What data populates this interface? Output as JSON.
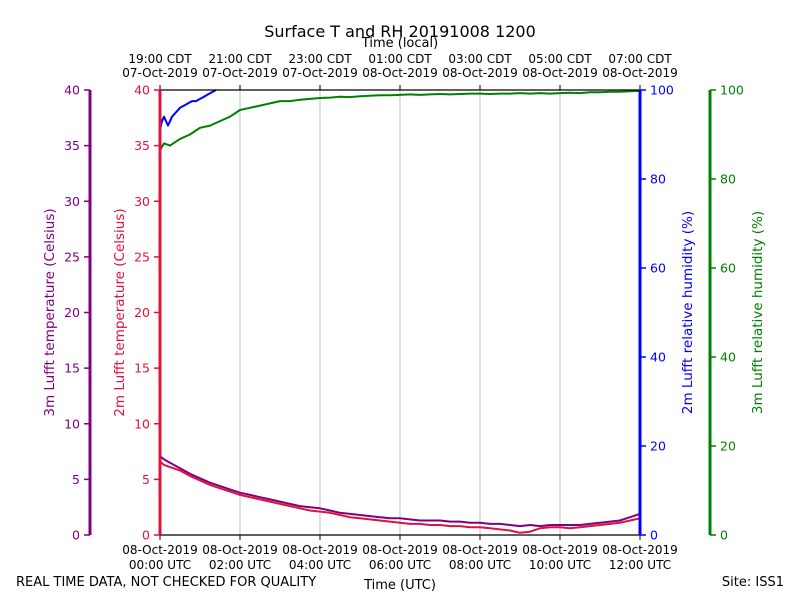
{
  "chart_data": {
    "type": "line",
    "title": "Surface T and RH 20191008 1200",
    "xlabel_bottom": "Time (UTC)",
    "xlabel_top": "Time (local)",
    "x_range_hours_utc": [
      0,
      12
    ],
    "bottom_ticks": [
      {
        "hour": 0,
        "l1": "08-Oct-2019",
        "l2": "00:00 UTC"
      },
      {
        "hour": 2,
        "l1": "08-Oct-2019",
        "l2": "02:00 UTC"
      },
      {
        "hour": 4,
        "l1": "08-Oct-2019",
        "l2": "04:00 UTC"
      },
      {
        "hour": 6,
        "l1": "08-Oct-2019",
        "l2": "06:00 UTC"
      },
      {
        "hour": 8,
        "l1": "08-Oct-2019",
        "l2": "08:00 UTC"
      },
      {
        "hour": 10,
        "l1": "08-Oct-2019",
        "l2": "10:00 UTC"
      },
      {
        "hour": 12,
        "l1": "08-Oct-2019",
        "l2": "12:00 UTC"
      }
    ],
    "top_ticks": [
      {
        "hour": 0,
        "l1": "19:00 CDT",
        "l2": "07-Oct-2019"
      },
      {
        "hour": 2,
        "l1": "21:00 CDT",
        "l2": "07-Oct-2019"
      },
      {
        "hour": 4,
        "l1": "23:00 CDT",
        "l2": "07-Oct-2019"
      },
      {
        "hour": 6,
        "l1": "01:00 CDT",
        "l2": "08-Oct-2019"
      },
      {
        "hour": 8,
        "l1": "03:00 CDT",
        "l2": "08-Oct-2019"
      },
      {
        "hour": 10,
        "l1": "05:00 CDT",
        "l2": "08-Oct-2019"
      },
      {
        "hour": 12,
        "l1": "07:00 CDT",
        "l2": "08-Oct-2019"
      }
    ],
    "axes": [
      {
        "id": "t3m",
        "label": "3m Lufft temperature (Celsius)",
        "color": "#800080",
        "range": [
          0,
          40
        ],
        "ticks": [
          0,
          5,
          10,
          15,
          20,
          25,
          30,
          35,
          40
        ]
      },
      {
        "id": "t2m",
        "label": "2m Lufft temperature (Celsius)",
        "color": "#dc143c",
        "range": [
          0,
          40
        ],
        "ticks": [
          0,
          5,
          10,
          15,
          20,
          25,
          30,
          35,
          40
        ]
      },
      {
        "id": "rh2m",
        "label": "2m Lufft relative humidity (%)",
        "color": "#0000ff",
        "range": [
          0,
          100
        ],
        "ticks": [
          0,
          20,
          40,
          60,
          80,
          100
        ]
      },
      {
        "id": "rh3m",
        "label": "3m Lufft relative humidity (%)",
        "color": "#008000",
        "range": [
          0,
          100
        ],
        "ticks": [
          0,
          20,
          40,
          60,
          80,
          100
        ]
      }
    ],
    "series": [
      {
        "axis": "t3m",
        "color": "#800080",
        "x": [
          0,
          0.1,
          0.25,
          0.5,
          0.75,
          1.0,
          1.25,
          1.5,
          1.75,
          2.0,
          2.25,
          2.5,
          2.75,
          3.0,
          3.25,
          3.5,
          3.75,
          4.0,
          4.25,
          4.5,
          4.75,
          5.0,
          5.25,
          5.5,
          5.75,
          6.0,
          6.25,
          6.5,
          6.75,
          7.0,
          7.25,
          7.5,
          7.75,
          8.0,
          8.25,
          8.5,
          8.75,
          9.0,
          9.25,
          9.5,
          9.75,
          10.0,
          10.25,
          10.5,
          10.75,
          11.0,
          11.25,
          11.5,
          11.75,
          12.0
        ],
        "y": [
          7.1,
          6.8,
          6.5,
          6.0,
          5.5,
          5.1,
          4.7,
          4.4,
          4.1,
          3.8,
          3.6,
          3.4,
          3.2,
          3.0,
          2.8,
          2.6,
          2.5,
          2.4,
          2.2,
          2.0,
          1.9,
          1.8,
          1.7,
          1.6,
          1.5,
          1.5,
          1.4,
          1.3,
          1.3,
          1.3,
          1.2,
          1.2,
          1.1,
          1.1,
          1.0,
          1.0,
          0.9,
          0.8,
          0.9,
          0.8,
          0.9,
          0.9,
          0.9,
          0.9,
          1.0,
          1.1,
          1.2,
          1.3,
          1.6,
          1.9
        ]
      },
      {
        "axis": "t2m",
        "color": "#dc143c",
        "x": [
          0,
          0.1,
          0.25,
          0.5,
          0.75,
          1.0,
          1.25,
          1.5,
          1.75,
          2.0,
          2.25,
          2.5,
          2.75,
          3.0,
          3.25,
          3.5,
          3.75,
          4.0,
          4.25,
          4.5,
          4.75,
          5.0,
          5.25,
          5.5,
          5.75,
          6.0,
          6.25,
          6.5,
          6.75,
          7.0,
          7.25,
          7.5,
          7.75,
          8.0,
          8.25,
          8.5,
          8.75,
          9.0,
          9.25,
          9.5,
          9.75,
          10.0,
          10.25,
          10.5,
          10.75,
          11.0,
          11.25,
          11.5,
          11.75,
          12.0
        ],
        "y": [
          6.6,
          6.3,
          6.1,
          5.8,
          5.3,
          4.9,
          4.5,
          4.2,
          3.9,
          3.6,
          3.4,
          3.2,
          3.0,
          2.8,
          2.6,
          2.4,
          2.2,
          2.1,
          2.0,
          1.8,
          1.6,
          1.5,
          1.4,
          1.3,
          1.2,
          1.1,
          1.0,
          1.0,
          0.9,
          0.9,
          0.8,
          0.8,
          0.7,
          0.7,
          0.6,
          0.5,
          0.4,
          0.2,
          0.3,
          0.6,
          0.7,
          0.7,
          0.6,
          0.7,
          0.8,
          0.9,
          1.0,
          1.1,
          1.3,
          1.5
        ]
      },
      {
        "axis": "rh2m",
        "color": "#0000ff",
        "x": [
          0,
          0.05,
          0.1,
          0.2,
          0.3,
          0.4,
          0.5,
          0.6,
          0.7,
          0.8,
          0.9,
          1.0,
          1.1,
          1.2,
          1.3,
          1.4
        ],
        "y": [
          91,
          93,
          94,
          92,
          94,
          95,
          96,
          96.5,
          97,
          97.5,
          97.5,
          98,
          98.5,
          99,
          99.5,
          100
        ]
      },
      {
        "axis": "rh3m",
        "color": "#008000",
        "x": [
          0,
          0.1,
          0.25,
          0.5,
          0.75,
          1.0,
          1.25,
          1.5,
          1.75,
          2.0,
          2.25,
          2.5,
          2.75,
          3.0,
          3.25,
          3.5,
          3.75,
          4.0,
          4.25,
          4.5,
          4.75,
          5.0,
          5.25,
          5.5,
          5.75,
          6.0,
          6.25,
          6.5,
          6.75,
          7.0,
          7.25,
          7.5,
          7.75,
          8.0,
          8.25,
          8.5,
          8.75,
          9.0,
          9.25,
          9.5,
          9.75,
          10.0,
          10.25,
          10.5,
          10.75,
          11.0,
          11.25,
          11.5,
          11.75,
          12.0
        ],
        "y": [
          86.5,
          88,
          87.5,
          89,
          90,
          91.5,
          92,
          93,
          94,
          95.5,
          96,
          96.5,
          97,
          97.5,
          97.5,
          97.8,
          98,
          98.2,
          98.3,
          98.5,
          98.4,
          98.6,
          98.7,
          98.8,
          98.8,
          98.9,
          99.0,
          98.9,
          99.0,
          99.1,
          99.0,
          99.1,
          99.2,
          99.2,
          99.1,
          99.2,
          99.2,
          99.3,
          99.2,
          99.3,
          99.2,
          99.3,
          99.4,
          99.3,
          99.5,
          99.5,
          99.6,
          99.6,
          99.7,
          99.8
        ]
      }
    ],
    "grid": "vertical"
  },
  "footer": {
    "quality_notice": "REAL TIME DATA, NOT CHECKED FOR QUALITY",
    "site": "Site: ISS1"
  }
}
